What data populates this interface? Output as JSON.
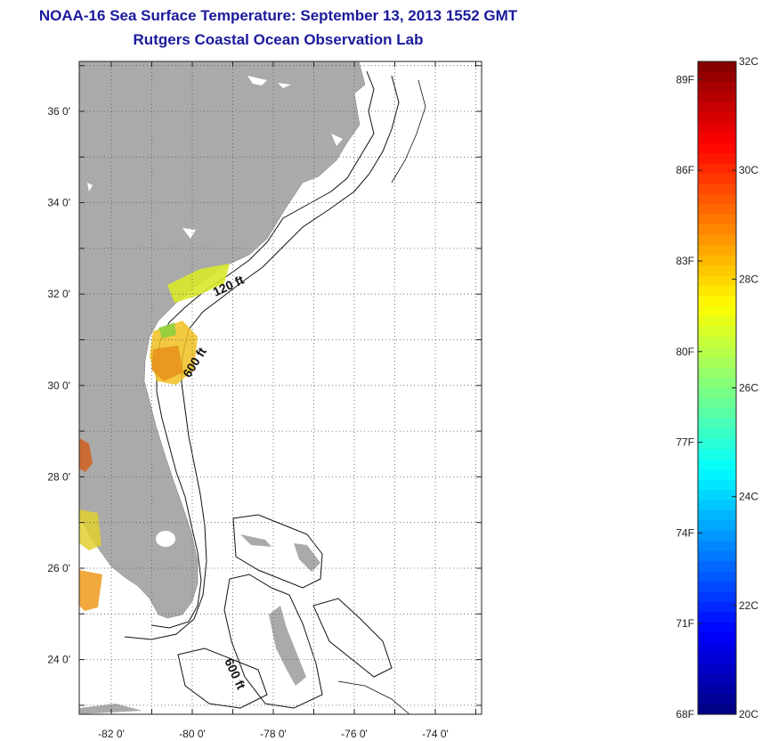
{
  "header": {
    "title": "NOAA-16 Sea Surface Temperature:  September 13, 2013 1552 GMT",
    "subtitle": "Rutgers Coastal Ocean Observation Lab"
  },
  "map": {
    "lon_ticks": [
      {
        "value": -82,
        "label": "-82 0'"
      },
      {
        "value": -80,
        "label": "-80 0'"
      },
      {
        "value": -78,
        "label": "-78 0'"
      },
      {
        "value": -76,
        "label": "-76 0'"
      },
      {
        "value": -74,
        "label": "-74 0'"
      }
    ],
    "lat_ticks": [
      {
        "value": 36,
        "label": "36 0'"
      },
      {
        "value": 34,
        "label": "34 0'"
      },
      {
        "value": 32,
        "label": "32 0'"
      },
      {
        "value": 30,
        "label": "30 0'"
      },
      {
        "value": 28,
        "label": "28 0'"
      },
      {
        "value": 26,
        "label": "26 0'"
      },
      {
        "value": 24,
        "label": "24 0'"
      }
    ],
    "contour_labels": [
      "120 ft",
      "600 ft",
      "600 ft"
    ],
    "colors": {
      "land": "#aaaaaa",
      "grid": "#555555"
    }
  },
  "colorbar": {
    "min_c": 20,
    "max_c": 32,
    "celsius_labels": [
      "32C",
      "30C",
      "28C",
      "26C",
      "24C",
      "22C",
      "20C"
    ],
    "fahrenheit_labels": [
      "89F",
      "86F",
      "83F",
      "80F",
      "77F",
      "74F",
      "71F",
      "68F"
    ],
    "colormap": "jet"
  }
}
